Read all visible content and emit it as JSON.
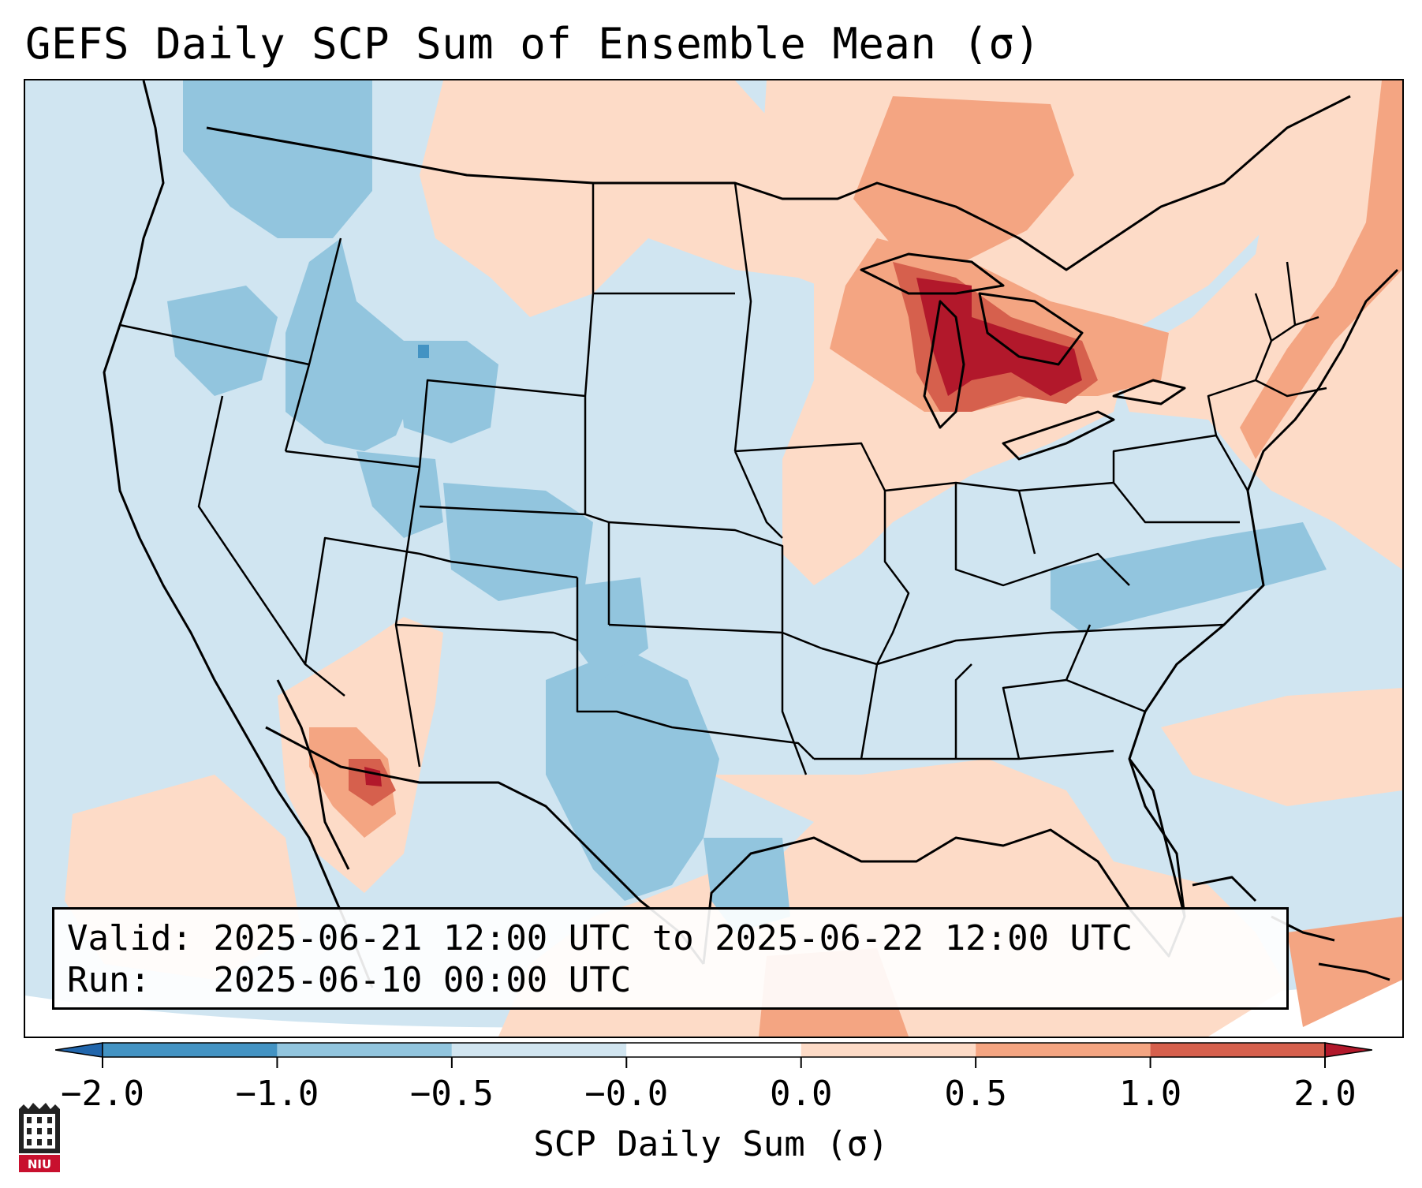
{
  "title": "GEFS Daily SCP Sum of Ensemble Mean (σ)",
  "info_box": {
    "valid_label": "Valid:",
    "valid_value": "2025-06-21 12:00 UTC to 2025-06-22 12:00 UTC",
    "run_label": "Run:",
    "run_value": "2025-06-10 00:00 UTC"
  },
  "colorbar": {
    "label": "SCP Daily Sum (σ)",
    "ticks": [
      "−2.0",
      "−1.0",
      "−0.5",
      "−0.0",
      "0.0",
      "0.5",
      "1.0",
      "2.0"
    ],
    "colors": [
      "#2166ac",
      "#4393c3",
      "#92c5de",
      "#d1e5f0",
      "#ffffff",
      "#fddbc7",
      "#f4a582",
      "#d6604d",
      "#b2182b"
    ],
    "extend": "both"
  },
  "map": {
    "region": "Continental United States",
    "ocean_color": "#d0e5f1",
    "anomaly_regions": [
      {
        "area": "Great Lakes",
        "category": "1.0 to 2.0"
      },
      {
        "area": "Northern Plains / Canadian border",
        "category": "0.5 to 1.0"
      },
      {
        "area": "Northeast / New England",
        "category": "0.5 to 1.0"
      },
      {
        "area": "Arizona / Sonora",
        "category": "1.0 to 2.0"
      },
      {
        "area": "Gulf of Mexico",
        "category": "0.0 to 0.5"
      },
      {
        "area": "Wyoming / Idaho",
        "category": "-1.0 to -0.5"
      },
      {
        "area": "Texas",
        "category": "-1.0 to -0.5"
      }
    ]
  },
  "logo": {
    "text": "NIU",
    "name": "Northern Illinois University"
  }
}
